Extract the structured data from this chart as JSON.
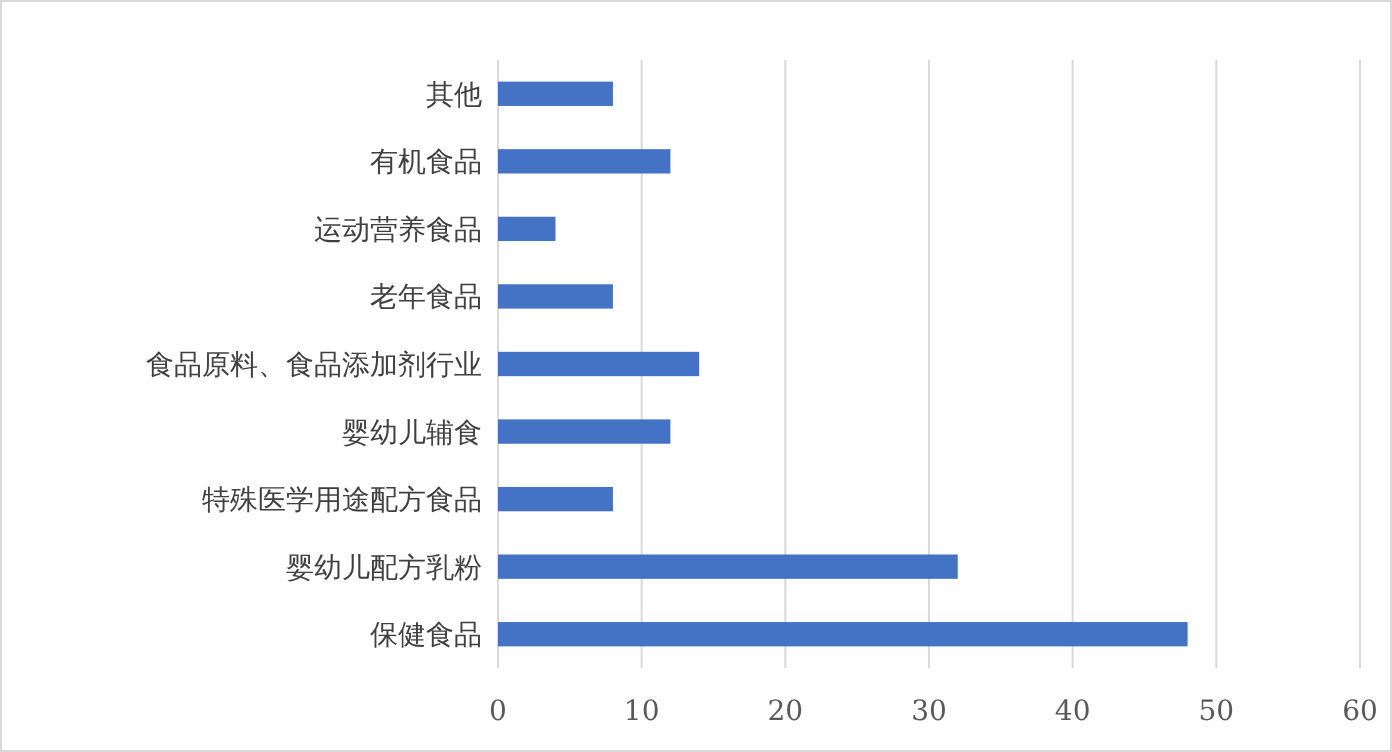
{
  "chart_data": {
    "type": "bar",
    "orientation": "horizontal",
    "categories": [
      "其他",
      "有机食品",
      "运动营养食品",
      "老年食品",
      "食品原料、食品添加剂行业",
      "婴幼儿辅食",
      "特殊医学用途配方食品",
      "婴幼儿配方乳粉",
      "保健食品"
    ],
    "values": [
      8,
      12,
      4,
      8,
      14,
      12,
      8,
      32,
      48
    ],
    "color": "#4472c4",
    "xlim": [
      0,
      60
    ],
    "xticks": [
      0,
      10,
      20,
      30,
      40,
      50,
      60
    ],
    "grid": "x"
  }
}
